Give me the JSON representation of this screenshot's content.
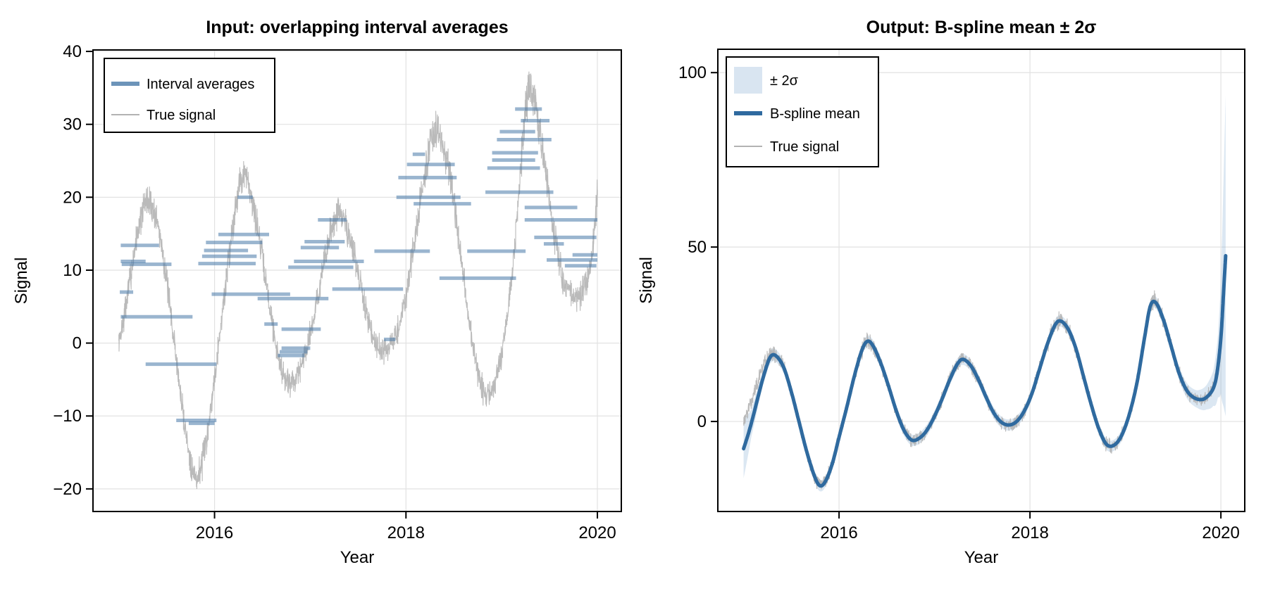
{
  "chart_data": {
    "type": "line",
    "figure_background": "#ffffff",
    "shared": {
      "true_signal": {
        "legend_label": "True signal",
        "color": "#b3b3b3",
        "noise_halfrange": 2.2,
        "base_points": [
          [
            2015.0,
            0.0
          ],
          [
            2015.06,
            4.0
          ],
          [
            2015.12,
            9.0
          ],
          [
            2015.2,
            15.5
          ],
          [
            2015.28,
            19.2
          ],
          [
            2015.34,
            18.8
          ],
          [
            2015.42,
            15.5
          ],
          [
            2015.5,
            8.5
          ],
          [
            2015.58,
            0.0
          ],
          [
            2015.66,
            -8.5
          ],
          [
            2015.74,
            -15.5
          ],
          [
            2015.8,
            -18.4
          ],
          [
            2015.86,
            -17.0
          ],
          [
            2015.93,
            -12.0
          ],
          [
            2016.0,
            -4.5
          ],
          [
            2016.08,
            4.0
          ],
          [
            2016.16,
            13.0
          ],
          [
            2016.24,
            20.5
          ],
          [
            2016.3,
            23.0
          ],
          [
            2016.36,
            21.5
          ],
          [
            2016.44,
            16.5
          ],
          [
            2016.52,
            10.0
          ],
          [
            2016.6,
            3.0
          ],
          [
            2016.68,
            -2.5
          ],
          [
            2016.76,
            -5.3
          ],
          [
            2016.84,
            -4.8
          ],
          [
            2016.92,
            -2.5
          ],
          [
            2017.0,
            1.5
          ],
          [
            2017.08,
            6.5
          ],
          [
            2017.16,
            12.0
          ],
          [
            2017.24,
            16.5
          ],
          [
            2017.3,
            17.8
          ],
          [
            2017.38,
            16.0
          ],
          [
            2017.46,
            12.0
          ],
          [
            2017.54,
            7.0
          ],
          [
            2017.62,
            2.5
          ],
          [
            2017.7,
            -0.2
          ],
          [
            2017.78,
            -1.0
          ],
          [
            2017.86,
            0.0
          ],
          [
            2017.94,
            3.0
          ],
          [
            2018.02,
            8.0
          ],
          [
            2018.1,
            15.0
          ],
          [
            2018.18,
            22.0
          ],
          [
            2018.26,
            27.5
          ],
          [
            2018.32,
            28.8
          ],
          [
            2018.4,
            26.5
          ],
          [
            2018.48,
            21.0
          ],
          [
            2018.56,
            13.0
          ],
          [
            2018.64,
            5.0
          ],
          [
            2018.72,
            -2.0
          ],
          [
            2018.8,
            -6.5
          ],
          [
            2018.88,
            -6.8
          ],
          [
            2018.96,
            -4.0
          ],
          [
            2019.04,
            2.0
          ],
          [
            2019.12,
            11.0
          ],
          [
            2019.2,
            24.0
          ],
          [
            2019.26,
            33.0
          ],
          [
            2019.32,
            34.0
          ],
          [
            2019.4,
            29.0
          ],
          [
            2019.48,
            21.5
          ],
          [
            2019.56,
            14.0
          ],
          [
            2019.64,
            9.0
          ],
          [
            2019.72,
            6.8
          ],
          [
            2019.8,
            6.3
          ],
          [
            2019.88,
            8.0
          ],
          [
            2019.94,
            11.5
          ],
          [
            2020.0,
            20.5
          ]
        ]
      }
    },
    "panels": [
      {
        "title": "Input: overlapping interval averages",
        "xlabel": "Year",
        "ylabel": "Signal",
        "xlim": [
          2014.73,
          2020.25
        ],
        "ylim": [
          -23.1,
          40.2
        ],
        "grid": true,
        "xticks": {
          "values": [
            2016,
            2018,
            2020
          ],
          "labels": [
            "2016",
            "2018",
            "2020"
          ]
        },
        "yticks": {
          "values": [
            -20,
            -10,
            0,
            10,
            20,
            30,
            40
          ],
          "labels": [
            "−20",
            "−10",
            "0",
            "10",
            "20",
            "30",
            "40"
          ]
        },
        "legend": {
          "position": "upper left",
          "entries": [
            {
              "label": "Interval averages",
              "type": "thick-line",
              "color": "#4779A8"
            },
            {
              "label": "True signal",
              "type": "thin-line",
              "color": "#b3b3b3"
            }
          ]
        },
        "intervals": {
          "color": "#4779A8",
          "opacity": 0.55,
          "line_width": 5,
          "segments": [
            [
              2015.02,
              2015.42,
              13.4
            ],
            [
              2015.02,
              2015.28,
              11.2
            ],
            [
              2015.03,
              2015.55,
              10.8
            ],
            [
              2015.01,
              2015.15,
              7.0
            ],
            [
              2015.02,
              2015.77,
              3.6
            ],
            [
              2015.28,
              2016.02,
              -2.9
            ],
            [
              2015.6,
              2016.02,
              -10.6
            ],
            [
              2015.73,
              2016.0,
              -11.0
            ],
            [
              2016.24,
              2016.4,
              20.0
            ],
            [
              2016.04,
              2016.57,
              14.9
            ],
            [
              2015.91,
              2016.5,
              13.8
            ],
            [
              2015.89,
              2016.35,
              12.7
            ],
            [
              2015.87,
              2016.44,
              11.9
            ],
            [
              2015.83,
              2016.43,
              10.9
            ],
            [
              2015.97,
              2016.79,
              6.7
            ],
            [
              2016.45,
              2017.19,
              6.1
            ],
            [
              2016.52,
              2016.66,
              2.6
            ],
            [
              2016.7,
              2017.11,
              1.9
            ],
            [
              2016.7,
              2017.0,
              -0.7
            ],
            [
              2016.68,
              2016.97,
              -1.2
            ],
            [
              2016.66,
              2016.94,
              -1.7
            ],
            [
              2017.08,
              2017.38,
              16.9
            ],
            [
              2016.94,
              2017.36,
              13.9
            ],
            [
              2016.9,
              2017.3,
              13.1
            ],
            [
              2016.83,
              2017.56,
              11.2
            ],
            [
              2016.77,
              2017.45,
              10.4
            ],
            [
              2017.23,
              2017.97,
              7.4
            ],
            [
              2017.77,
              2017.89,
              0.5
            ],
            [
              2017.67,
              2018.25,
              12.6
            ],
            [
              2018.64,
              2019.25,
              12.6
            ],
            [
              2018.07,
              2018.2,
              25.9
            ],
            [
              2018.01,
              2018.51,
              24.5
            ],
            [
              2017.92,
              2018.53,
              22.7
            ],
            [
              2017.9,
              2018.57,
              20.0
            ],
            [
              2018.08,
              2018.68,
              19.1
            ],
            [
              2018.35,
              2019.15,
              8.9
            ],
            [
              2019.14,
              2019.42,
              32.1
            ],
            [
              2019.2,
              2019.5,
              30.5
            ],
            [
              2018.98,
              2019.35,
              29.0
            ],
            [
              2018.95,
              2019.52,
              27.9
            ],
            [
              2018.9,
              2019.38,
              26.1
            ],
            [
              2018.9,
              2019.35,
              25.1
            ],
            [
              2018.85,
              2019.4,
              24.0
            ],
            [
              2018.83,
              2019.54,
              20.7
            ],
            [
              2019.24,
              2019.79,
              18.6
            ],
            [
              2019.24,
              2020.0,
              16.9
            ],
            [
              2019.34,
              2019.99,
              14.5
            ],
            [
              2019.44,
              2019.65,
              13.6
            ],
            [
              2019.74,
              2020.0,
              12.1
            ],
            [
              2019.47,
              2020.0,
              11.4
            ],
            [
              2019.66,
              2019.99,
              10.6
            ]
          ]
        }
      },
      {
        "title": "Output: B-spline mean ± 2σ",
        "xlabel": "Year",
        "ylabel": "Signal",
        "xlim": [
          2014.73,
          2020.25
        ],
        "ylim": [
          -25.8,
          106.7
        ],
        "grid": true,
        "xticks": {
          "values": [
            2016,
            2018,
            2020
          ],
          "labels": [
            "2016",
            "2018",
            "2020"
          ]
        },
        "yticks": {
          "values": [
            0,
            50,
            100
          ],
          "labels": [
            "0",
            "50",
            "100"
          ]
        },
        "legend": {
          "position": "upper left",
          "entries": [
            {
              "label": "± 2σ",
              "type": "patch",
              "color": "#D9E5F1"
            },
            {
              "label": "B-spline mean",
              "type": "thick-line",
              "color": "#2F6A9F"
            },
            {
              "label": "True signal",
              "type": "thin-line",
              "color": "#b3b3b3"
            }
          ]
        },
        "spline_mean": {
          "color": "#2F6A9F",
          "line_width": 5,
          "points": [
            [
              2015.0,
              -7.8
            ],
            [
              2015.05,
              -3.5
            ],
            [
              2015.1,
              1.5
            ],
            [
              2015.16,
              8.0
            ],
            [
              2015.22,
              14.0
            ],
            [
              2015.28,
              18.5
            ],
            [
              2015.34,
              18.8
            ],
            [
              2015.42,
              15.5
            ],
            [
              2015.5,
              8.5
            ],
            [
              2015.58,
              0.0
            ],
            [
              2015.66,
              -8.5
            ],
            [
              2015.74,
              -15.5
            ],
            [
              2015.8,
              -18.4
            ],
            [
              2015.86,
              -17.0
            ],
            [
              2015.93,
              -12.0
            ],
            [
              2016.0,
              -4.5
            ],
            [
              2016.08,
              4.0
            ],
            [
              2016.16,
              13.0
            ],
            [
              2016.24,
              20.5
            ],
            [
              2016.3,
              23.0
            ],
            [
              2016.36,
              21.5
            ],
            [
              2016.44,
              16.5
            ],
            [
              2016.52,
              10.0
            ],
            [
              2016.6,
              3.0
            ],
            [
              2016.68,
              -2.5
            ],
            [
              2016.76,
              -5.3
            ],
            [
              2016.84,
              -4.8
            ],
            [
              2016.92,
              -2.5
            ],
            [
              2017.0,
              1.5
            ],
            [
              2017.08,
              6.5
            ],
            [
              2017.16,
              12.0
            ],
            [
              2017.24,
              16.5
            ],
            [
              2017.3,
              17.8
            ],
            [
              2017.38,
              16.0
            ],
            [
              2017.46,
              12.0
            ],
            [
              2017.54,
              7.0
            ],
            [
              2017.62,
              2.5
            ],
            [
              2017.7,
              -0.2
            ],
            [
              2017.78,
              -1.0
            ],
            [
              2017.86,
              0.0
            ],
            [
              2017.94,
              3.0
            ],
            [
              2018.02,
              8.0
            ],
            [
              2018.1,
              15.0
            ],
            [
              2018.18,
              22.0
            ],
            [
              2018.26,
              27.5
            ],
            [
              2018.32,
              28.8
            ],
            [
              2018.4,
              26.5
            ],
            [
              2018.48,
              21.0
            ],
            [
              2018.56,
              13.0
            ],
            [
              2018.64,
              5.0
            ],
            [
              2018.72,
              -2.0
            ],
            [
              2018.8,
              -6.5
            ],
            [
              2018.88,
              -6.8
            ],
            [
              2018.96,
              -4.0
            ],
            [
              2019.04,
              2.0
            ],
            [
              2019.12,
              11.0
            ],
            [
              2019.2,
              24.0
            ],
            [
              2019.26,
              33.0
            ],
            [
              2019.32,
              34.0
            ],
            [
              2019.4,
              29.0
            ],
            [
              2019.48,
              21.5
            ],
            [
              2019.56,
              14.0
            ],
            [
              2019.64,
              9.0
            ],
            [
              2019.72,
              6.8
            ],
            [
              2019.8,
              6.3
            ],
            [
              2019.86,
              7.2
            ],
            [
              2019.92,
              9.5
            ],
            [
              2019.96,
              14.0
            ],
            [
              2020.0,
              24.0
            ],
            [
              2020.03,
              38.0
            ],
            [
              2020.05,
              47.5
            ]
          ]
        },
        "band": {
          "label": "± 2σ",
          "color": "#7FA8D0",
          "opacity": 0.28,
          "halfwidth_points": [
            [
              2015.0,
              8.5
            ],
            [
              2015.08,
              4.0
            ],
            [
              2015.2,
              2.0
            ],
            [
              2015.5,
              1.6
            ],
            [
              2016.0,
              1.6
            ],
            [
              2017.0,
              1.6
            ],
            [
              2018.0,
              1.6
            ],
            [
              2019.0,
              1.6
            ],
            [
              2019.5,
              1.8
            ],
            [
              2019.75,
              2.5
            ],
            [
              2019.85,
              3.5
            ],
            [
              2019.92,
              5.0
            ],
            [
              2019.97,
              9.0
            ],
            [
              2020.0,
              16.0
            ],
            [
              2020.02,
              28.0
            ],
            [
              2020.05,
              46.0
            ]
          ]
        }
      }
    ]
  }
}
